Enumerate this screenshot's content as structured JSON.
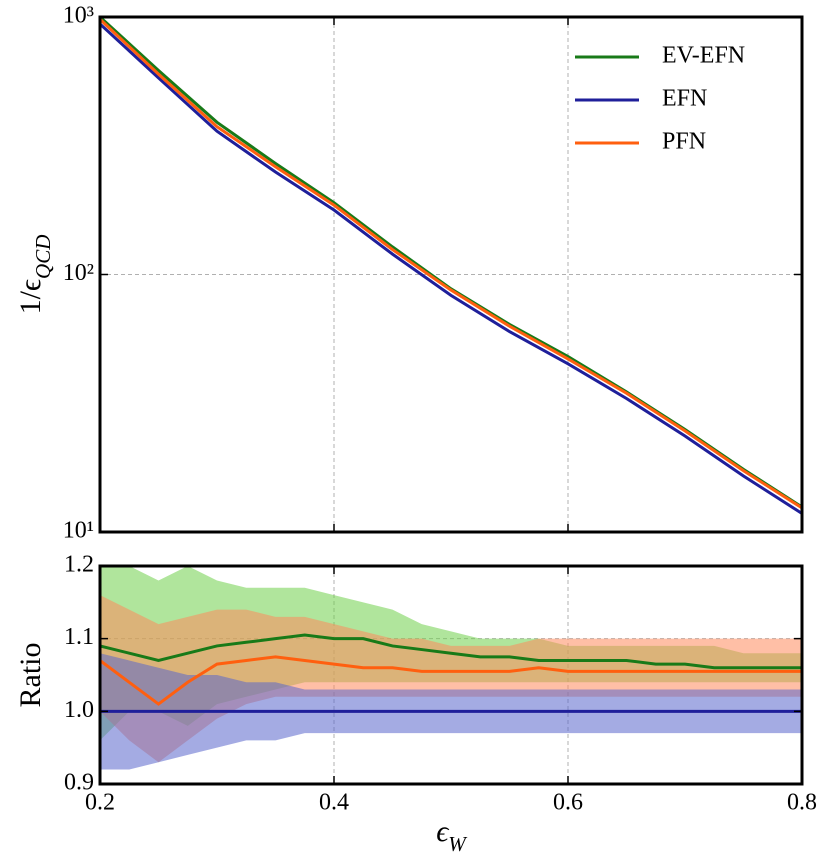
{
  "chart_data": [
    {
      "type": "line",
      "ylabel": {
        "main": "1/ϵ",
        "sub": "QCD"
      },
      "log_y": true,
      "legend": "upper right",
      "grid": true,
      "show_xtick_labels": false,
      "xlim": [
        0.2,
        0.8
      ],
      "xticks": [
        0.2,
        0.4,
        0.6,
        0.8
      ],
      "ylim": [
        10,
        1000
      ],
      "yticks": [
        {
          "value": 10,
          "label": "10¹"
        },
        {
          "value": 100,
          "label": "10²"
        },
        {
          "value": 1000,
          "label": "10³"
        }
      ],
      "x": [
        0.2,
        0.25,
        0.3,
        0.35,
        0.4,
        0.45,
        0.5,
        0.55,
        0.6,
        0.65,
        0.7,
        0.75,
        0.8
      ],
      "series": [
        {
          "name": "EV-EFN",
          "color": "#187a18",
          "values": [
            1000,
            620,
            390,
            270,
            190,
            128,
            88,
            64,
            48,
            35,
            25,
            17.5,
            12.5
          ]
        },
        {
          "name": "EFN",
          "color": "#1f1f9a",
          "values": [
            940,
            580,
            360,
            250,
            178,
            120,
            83,
            60,
            45,
            33,
            23.6,
            16.5,
            11.8
          ]
        },
        {
          "name": "PFN",
          "color": "#ff5f0f",
          "values": [
            980,
            600,
            375,
            262,
            186,
            125,
            87,
            63,
            47,
            34.6,
            24.7,
            17.3,
            12.4
          ]
        }
      ]
    },
    {
      "type": "line",
      "ylabel": {
        "main": "Ratio"
      },
      "xlabel": {
        "main": "ϵ",
        "sub": "W"
      },
      "log_y": false,
      "grid": true,
      "show_xtick_labels": true,
      "xlim": [
        0.2,
        0.8
      ],
      "xticks": [
        0.2,
        0.4,
        0.6,
        0.8
      ],
      "ylim": [
        0.9,
        1.2
      ],
      "yticks": [
        0.9,
        {
          "value": 1,
          "label": "1.0"
        },
        1.1,
        1.2
      ],
      "x": [
        0.2,
        0.225,
        0.25,
        0.275,
        0.3,
        0.325,
        0.35,
        0.375,
        0.4,
        0.425,
        0.45,
        0.475,
        0.5,
        0.525,
        0.55,
        0.575,
        0.6,
        0.625,
        0.65,
        0.675,
        0.7,
        0.725,
        0.75,
        0.775,
        0.8
      ],
      "series": [
        {
          "name": "EV-EFN",
          "color": "#187a18",
          "band_color": "#6fd04a",
          "values": [
            1.09,
            1.08,
            1.07,
            1.08,
            1.09,
            1.095,
            1.1,
            1.105,
            1.1,
            1.1,
            1.09,
            1.085,
            1.08,
            1.075,
            1.075,
            1.07,
            1.07,
            1.07,
            1.07,
            1.065,
            1.065,
            1.06,
            1.06,
            1.06,
            1.06
          ],
          "upper": [
            1.2,
            1.2,
            1.18,
            1.2,
            1.18,
            1.17,
            1.17,
            1.17,
            1.16,
            1.15,
            1.14,
            1.12,
            1.11,
            1.1,
            1.1,
            1.1,
            1.09,
            1.09,
            1.09,
            1.09,
            1.09,
            1.09,
            1.08,
            1.08,
            1.08
          ],
          "lower": [
            0.96,
            1,
            1,
            0.98,
            1.01,
            1.02,
            1.03,
            1.04,
            1.04,
            1.04,
            1.04,
            1.04,
            1.04,
            1.04,
            1.04,
            1.04,
            1.04,
            1.04,
            1.04,
            1.04,
            1.04,
            1.04,
            1.04,
            1.04,
            1.04
          ]
        },
        {
          "name": "PFN",
          "color": "#ff5f0f",
          "band_color": "#ff8a5c",
          "values": [
            1.07,
            1.04,
            1.01,
            1.04,
            1.065,
            1.07,
            1.075,
            1.07,
            1.065,
            1.06,
            1.06,
            1.055,
            1.055,
            1.055,
            1.055,
            1.06,
            1.055,
            1.055,
            1.055,
            1.055,
            1.055,
            1.055,
            1.055,
            1.055,
            1.055
          ],
          "upper": [
            1.16,
            1.14,
            1.12,
            1.13,
            1.14,
            1.14,
            1.13,
            1.13,
            1.12,
            1.11,
            1.1,
            1.1,
            1.09,
            1.09,
            1.09,
            1.1,
            1.1,
            1.1,
            1.1,
            1.1,
            1.1,
            1.1,
            1.1,
            1.1,
            1.1
          ],
          "lower": [
            1,
            0.96,
            0.93,
            0.96,
            0.99,
            1.01,
            1.02,
            1.02,
            1.02,
            1.02,
            1.02,
            1.02,
            1.02,
            1.02,
            1.02,
            1.02,
            1.02,
            1.02,
            1.02,
            1.02,
            1.02,
            1.02,
            1.02,
            1.02,
            1.02
          ]
        },
        {
          "name": "EFN",
          "color": "#1f1f9a",
          "band_color": "#5a66cc",
          "values": [
            1,
            1,
            1,
            1,
            1,
            1,
            1,
            1,
            1,
            1,
            1,
            1,
            1,
            1,
            1,
            1,
            1,
            1,
            1,
            1,
            1,
            1,
            1,
            1,
            1
          ],
          "upper": [
            1.08,
            1.07,
            1.06,
            1.05,
            1.05,
            1.04,
            1.04,
            1.03,
            1.03,
            1.03,
            1.03,
            1.03,
            1.03,
            1.03,
            1.03,
            1.03,
            1.03,
            1.03,
            1.03,
            1.03,
            1.03,
            1.03,
            1.03,
            1.03,
            1.03
          ],
          "lower": [
            0.92,
            0.92,
            0.93,
            0.94,
            0.95,
            0.96,
            0.96,
            0.97,
            0.97,
            0.97,
            0.97,
            0.97,
            0.97,
            0.97,
            0.97,
            0.97,
            0.97,
            0.97,
            0.97,
            0.97,
            0.97,
            0.97,
            0.97,
            0.97,
            0.97
          ]
        }
      ]
    }
  ]
}
